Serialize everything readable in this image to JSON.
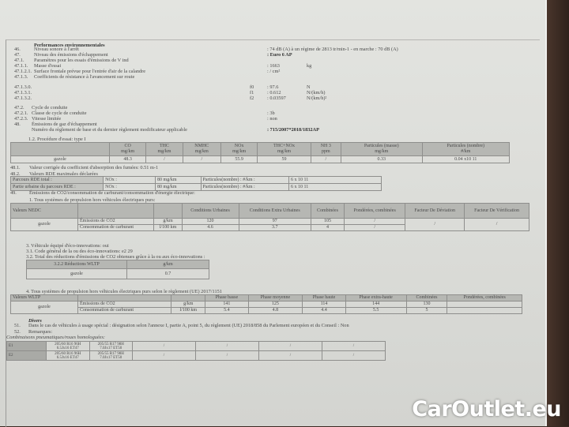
{
  "section_title": "Performances environnementales",
  "lines": [
    {
      "num": "46.",
      "label": "Niveau sonore à l'arrêt",
      "value": ": 74 dB (A)   à un régime de 2813 tr/min-1 - en marche :   70 dB (A)"
    },
    {
      "num": "47.",
      "label": "Niveau des émissions d'échappement",
      "value": ": Euro 6 AP"
    },
    {
      "num": "47.1.",
      "label": "Paramètres pour les essais d'émissions de V ind",
      "value": ""
    },
    {
      "num": "47.1.1.",
      "label": "Masse d'essai",
      "value": ": 1663",
      "unit": "kg"
    },
    {
      "num": "47.1.2.1.",
      "label": "Surface frontale prévue pour l'entrée d'air de la calandre",
      "value": ": / cm²"
    },
    {
      "num": "47.1.3.",
      "label": "Coefficients de résistance à l'avancement sur route",
      "value": ""
    },
    {
      "num": "47.1.3.0.",
      "sym": "f0",
      "value": ": 97.6",
      "unit": "N"
    },
    {
      "num": "47.1.3.1.",
      "sym": "f1",
      "value": ": 0.612",
      "unit": "N/(km/h)"
    },
    {
      "num": "47.1.3.2.",
      "sym": "f2",
      "value": ": 0.03597",
      "unit": "N/(km/h)²"
    },
    {
      "num": "47.2.",
      "label": "Cycle de conduite",
      "value": ""
    },
    {
      "num": "47.2.1.",
      "label": "Classe de cycle de conduite",
      "value": ": 3b"
    },
    {
      "num": "47.2.3.",
      "label": "Vitesse limitée",
      "value": ": non"
    },
    {
      "num": "48.",
      "label": "Émissions de gaz d'échappement",
      "value": ""
    },
    {
      "num": "",
      "label": "Numéro du règlement de base et du dernier règlement modificateur applicable",
      "value": ": 715/2007*2018/1832AP"
    }
  ],
  "procedure": "1.2. Procédure d'essai: type I",
  "emissions_table": {
    "headers": [
      [
        "CO",
        "mg/km"
      ],
      [
        "THC",
        "mg/km"
      ],
      [
        "NMHC",
        "mg/km"
      ],
      [
        "NOx",
        "mg/km"
      ],
      [
        "THC+NOx",
        "mg/km"
      ],
      [
        "NH 3",
        "ppm"
      ],
      [
        "Particules (masse)",
        "mg/km"
      ],
      [
        "Particules (nombre)",
        "#/km"
      ]
    ],
    "row": {
      "label": "gazole",
      "values": [
        "48.3",
        "/",
        "/",
        "55.9",
        "59",
        "/",
        "0.33",
        "0.04 x10 11"
      ]
    }
  },
  "l481": {
    "num": "48.1.",
    "text": "Valeur corrigée du coefficient d'absorption des fumées: 0.51 m-1"
  },
  "l482": {
    "num": "48.2.",
    "text": "Valeurs RDE maximales déclarées"
  },
  "rde_rows": [
    [
      "Parcours RDE total :",
      "NOx :",
      "80 mg/km",
      "Particules(nombre) : #/km :",
      "6 x 10 11"
    ],
    [
      "Partie urbaine du parcours RDE :",
      "NOx :",
      "80 mg/km",
      "Particules(nombre) : #/km :",
      "6 x 10 11"
    ]
  ],
  "l49": {
    "num": "49.",
    "text": "Émissions de CO2/consommation de carburant/consommation d'énergie électrique:"
  },
  "nedc_title": "1. Tous systèmes de propulsion hors véhicules électriques purs:",
  "nedc": {
    "headers": [
      "Valeurs NEDC",
      "",
      "",
      "Conditions Urbaines",
      "Conditions Extra Urbaines",
      "Combinées",
      "Pondérées, combinées",
      "Facteur De Déviation",
      "Facteur De Vérification"
    ],
    "fuel": "gazole",
    "rows": [
      {
        "label": "Émissions de CO2",
        "unit": "g/km",
        "values": [
          "120",
          "97",
          "105",
          "/"
        ]
      },
      {
        "label": "Consommation de carburant",
        "unit": "l/100 km",
        "values": [
          "4.6",
          "3.7",
          "4",
          "/"
        ]
      }
    ],
    "dev": "/",
    "verif": "/"
  },
  "eco": {
    "l3": "3. Véhicule équipé d'éco-innovations: oui",
    "l31": "3.1. Code général de la ou des éco-innovations: e2 29",
    "l32": "3.2. Total des réductions d'émissions de CO2 obtenues grâce à la ou aux éco-innovations :",
    "table_header": [
      "3.2.2 Réductions WLTP",
      "g/km"
    ],
    "table_row": [
      "gazole",
      "0.7"
    ]
  },
  "wltp_title": "4. Tous systèmes de propulsion hors véhicules électriques purs selon le règlement (UE) 2017/1151",
  "wltp": {
    "headers": [
      "Valeurs WLTP",
      "",
      "",
      "Phase basse",
      "Phase moyenne",
      "Phase haute",
      "Phase extra-haute",
      "Combinées",
      "Pondérées, combinées"
    ],
    "fuel": "gazole",
    "rows": [
      {
        "label": "Émissions de CO2",
        "unit": "g/km",
        "values": [
          "141",
          "125",
          "114",
          "144",
          "130",
          ""
        ]
      },
      {
        "label": "Consommation de carburant",
        "unit": "l/100 km",
        "values": [
          "5.4",
          "4.8",
          "4.4",
          "5.5",
          "5",
          ""
        ]
      }
    ]
  },
  "divers": {
    "title": "Divers",
    "l51": {
      "num": "51.",
      "text": "Dans le cas de véhicules à usage spécial : désignation selon l'annexe I, partie A, point 5, du règlement (UE) 2018/858 du Parlement européen et du Conseil : Non"
    },
    "l52": {
      "num": "52.",
      "text": "Remarques:"
    },
    "combos": "Combinaisons pneumatiques/roues homologuées:",
    "tyre_rows": [
      {
        "axle": "E1",
        "t1": [
          "205/60 R16 96H",
          "6.5Jx16 ET47"
        ],
        "t2": [
          "205/55 R17 98H",
          "7.0Jx17 ET50"
        ],
        "rest": [
          "/",
          "/",
          "/",
          "/"
        ]
      },
      {
        "axle": "E2",
        "t1": [
          "205/60 R16 96H",
          "6.5Jx16 ET47"
        ],
        "t2": [
          "205/55 R17 98H",
          "7.0Jx17 ET50"
        ],
        "rest": [
          "/",
          "/",
          "/",
          "/"
        ]
      }
    ]
  },
  "watermark": "CarOutlet.eu"
}
